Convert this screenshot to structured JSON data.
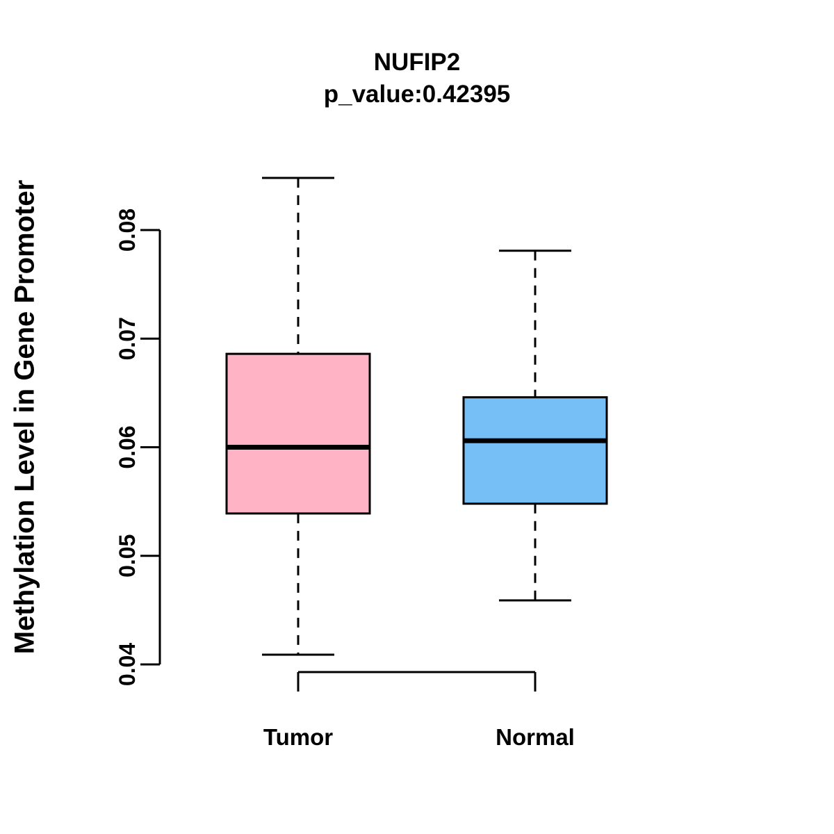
{
  "header": {
    "gene": "NUFIP2",
    "p_value_line": "p_value:0.42395"
  },
  "axes": {
    "y_label": "Methylation Level in Gene Promoter"
  },
  "chart_data": {
    "type": "boxplot",
    "title": "NUFIP2",
    "subtitle": "p_value:0.42395",
    "ylabel": "Methylation Level in Gene Promoter",
    "xlabel": "",
    "categories": [
      "Tumor",
      "Normal"
    ],
    "series": [
      {
        "name": "Tumor",
        "fill_color": "#FFB3C4",
        "whisker_low": 0.0409,
        "q1": 0.0539,
        "median": 0.06,
        "q3": 0.0686,
        "whisker_high": 0.0848
      },
      {
        "name": "Normal",
        "fill_color": "#76BFF6",
        "whisker_low": 0.0459,
        "q1": 0.0548,
        "median": 0.0606,
        "q3": 0.0646,
        "whisker_high": 0.0781
      }
    ],
    "y_ticks": [
      0.04,
      0.05,
      0.06,
      0.07,
      0.08
    ],
    "y_tick_labels": [
      "0.04",
      "0.05",
      "0.06",
      "0.07",
      "0.08"
    ],
    "ylim": [
      0.04,
      0.08
    ],
    "grid": false,
    "legend": "none",
    "line_color": "#000000"
  }
}
